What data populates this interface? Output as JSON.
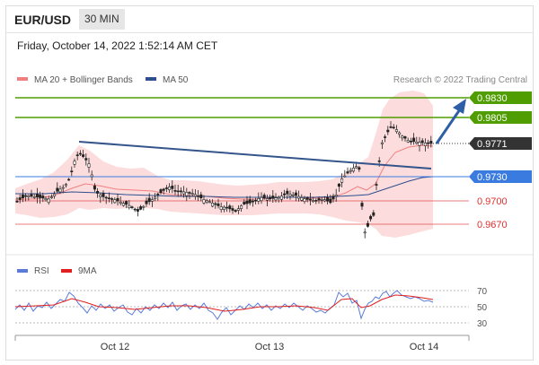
{
  "header": {
    "symbol": "EUR/USD",
    "timeframe": "30 MIN",
    "datetime": "Friday, October 14, 2022 1:52:14 AM CET"
  },
  "legend": {
    "items": [
      {
        "label": "MA 20 + Bollinger Bands",
        "color": "#f08080"
      },
      {
        "label": "MA 50",
        "color": "#2f4f8f"
      }
    ],
    "credit": "Research © 2022 Trading Central"
  },
  "colors": {
    "resistance": "#4f9d00",
    "support_blue": "#3a7be0",
    "support_red": "#e05050",
    "current": "#333333",
    "trendline": "#34558b",
    "arrow": "#2e5fa6",
    "band": "#fbd6d6",
    "candle": "#222222"
  },
  "price_levels": [
    {
      "value": "0.9830",
      "price": 0.983,
      "type": "resistance"
    },
    {
      "value": "0.9805",
      "price": 0.9805,
      "type": "resistance"
    },
    {
      "value": "0.9771",
      "price": 0.9771,
      "type": "current"
    },
    {
      "value": "0.9730",
      "price": 0.973,
      "type": "support_blue"
    },
    {
      "value": "0.9700",
      "price": 0.97,
      "type": "support_red"
    },
    {
      "value": "0.9670",
      "price": 0.967,
      "type": "support_red"
    }
  ],
  "rsi": {
    "legend": [
      {
        "label": "RSI",
        "color": "#5a7bd8"
      },
      {
        "label": "9MA",
        "color": "#e02020"
      }
    ],
    "levels": [
      "70",
      "50",
      "30"
    ]
  },
  "x_axis": {
    "labels": [
      "Oct 12",
      "Oct 13",
      "Oct 14"
    ]
  }
}
